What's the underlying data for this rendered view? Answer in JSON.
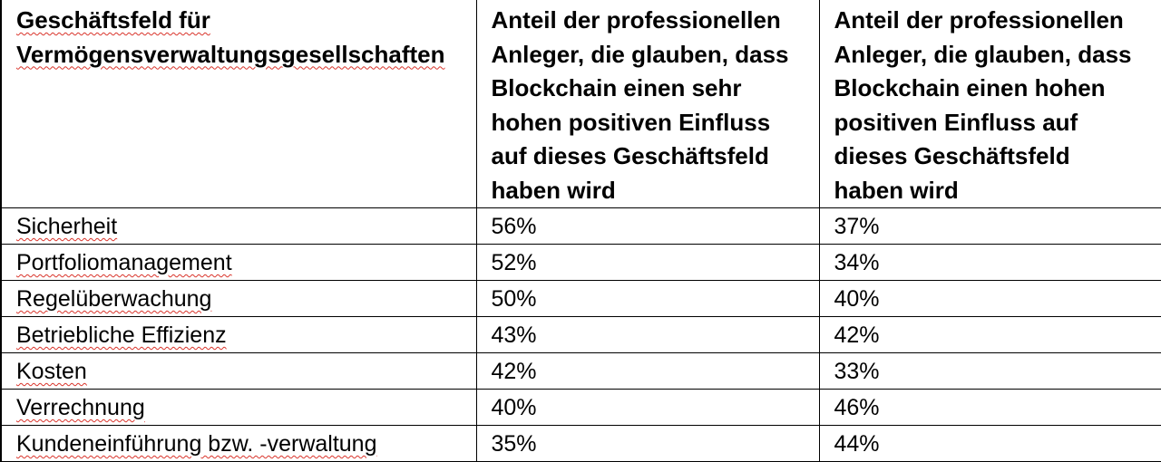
{
  "table": {
    "header": {
      "col1": [
        "Geschäftsfeld für",
        "Vermögensverwaltungsgesellschaften"
      ],
      "col2": [
        "Anteil der professionellen",
        "Anleger, die glauben, dass",
        "Blockchain einen sehr",
        "hohen positiven Einfluss",
        "auf dieses Geschäftsfeld",
        "haben wird"
      ],
      "col3": [
        "Anteil der professionellen",
        "Anleger, die glauben, dass",
        "Blockchain einen hohen",
        "positiven Einfluss auf",
        "dieses Geschäftsfeld",
        "haben wird"
      ]
    },
    "rows": [
      {
        "field": "Sicherheit",
        "very_high": "56%",
        "high": "37%"
      },
      {
        "field": "Portfoliomanagement",
        "very_high": "52%",
        "high": "34%"
      },
      {
        "field": "Regelüberwachung",
        "very_high": "50%",
        "high": "40%"
      },
      {
        "field": "Betriebliche Effizienz",
        "very_high": "43%",
        "high": "42%"
      },
      {
        "field": "Kosten",
        "very_high": "42%",
        "high": "33%"
      },
      {
        "field": "Verrechnung",
        "very_high": "40%",
        "high": "46%"
      },
      {
        "field": "Kundeneinführung bzw. -verwaltung",
        "very_high": "35%",
        "high": "44%"
      }
    ]
  },
  "colors": {
    "text": "#000000",
    "border": "#000000",
    "spellcheck_underline": "#d9342b",
    "background": "#ffffff"
  }
}
